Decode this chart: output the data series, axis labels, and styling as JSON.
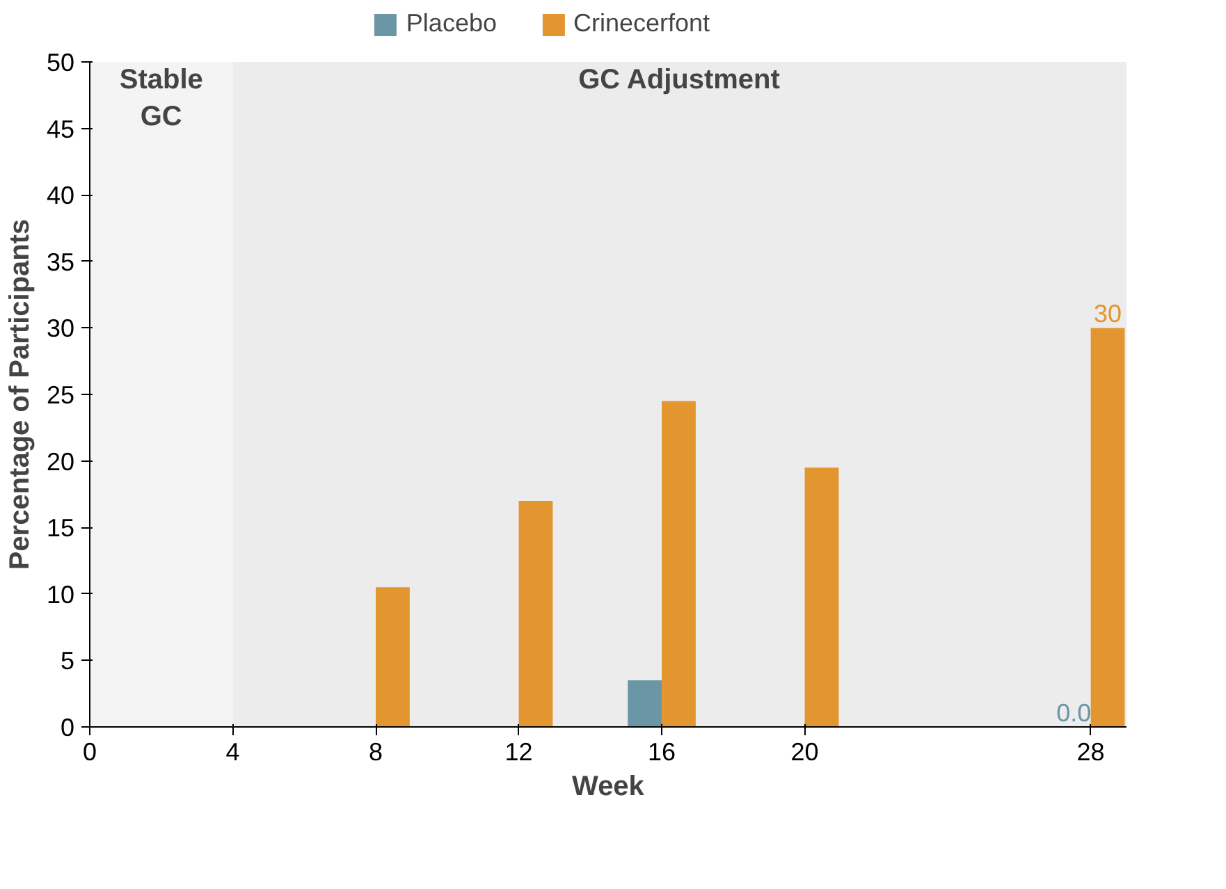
{
  "chart_data": {
    "type": "bar",
    "xlabel": "Week",
    "ylabel": "Percentage of Participants",
    "xlim": [
      0,
      29
    ],
    "xticks": [
      0,
      4,
      8,
      12,
      16,
      20,
      28
    ],
    "ylim": [
      0,
      50
    ],
    "yticks": [
      0,
      5,
      10,
      15,
      20,
      25,
      30,
      35,
      40,
      45,
      50
    ],
    "series": [
      {
        "name": "Placebo",
        "color": "#6b96a6",
        "x": [
          16,
          28
        ],
        "values": [
          3.5,
          0.0
        ],
        "value_labels": [
          null,
          "0.0"
        ]
      },
      {
        "name": "Crinecerfont",
        "color": "#e39630",
        "x": [
          8,
          12,
          16,
          20,
          28
        ],
        "values": [
          10.5,
          17.0,
          24.5,
          19.5,
          30.0
        ],
        "value_labels": [
          null,
          null,
          null,
          null,
          "30"
        ]
      }
    ],
    "bands": [
      {
        "axis": "x",
        "from": 0,
        "to": 4,
        "label": "Stable\nGC",
        "color": "#f4f4f4"
      },
      {
        "axis": "x",
        "from": 4,
        "to": 29,
        "label": "GC Adjustment",
        "color": "#ececec"
      }
    ],
    "grid": false,
    "legend": "top"
  }
}
